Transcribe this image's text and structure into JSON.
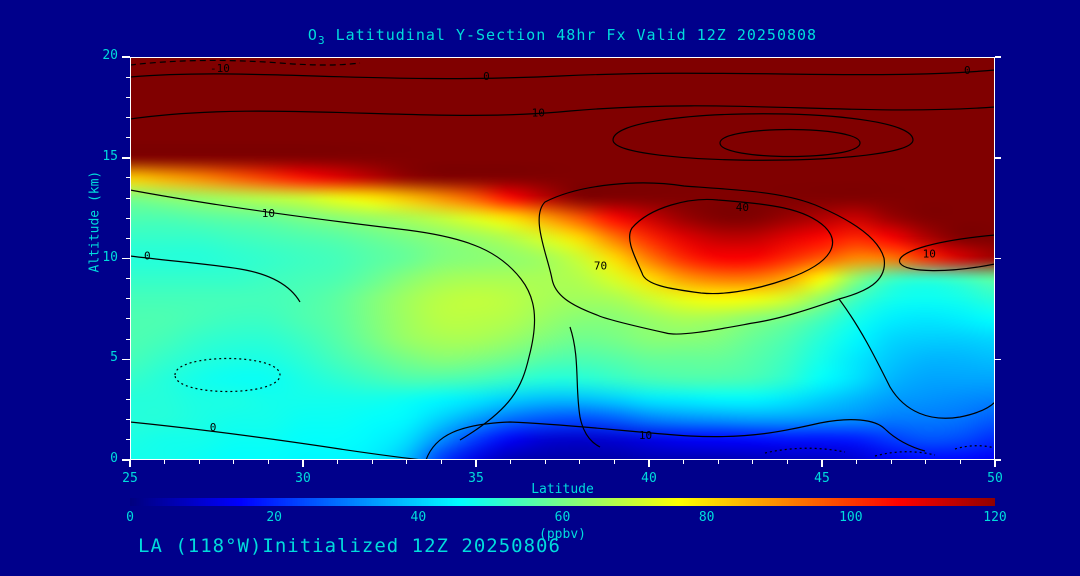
{
  "title": {
    "prefix": "O",
    "sub": "3",
    "rest": " Latitudinal Y-Section 48hr  Fx Valid 12Z 20250808"
  },
  "footer": "LA (118°W)Initialized 12Z 20250806",
  "axes": {
    "x": {
      "label": "Latitude",
      "min": 25,
      "max": 50,
      "major_ticks": [
        25,
        30,
        35,
        40,
        45,
        50
      ],
      "minor_step": 1
    },
    "y": {
      "label": "Altitude (km)",
      "min": 0,
      "max": 20,
      "major_ticks": [
        0,
        5,
        10,
        15,
        20
      ],
      "minor_step": 1
    }
  },
  "colorbar": {
    "min": 0,
    "max": 120,
    "ticks": [
      0,
      20,
      40,
      60,
      80,
      100,
      120
    ],
    "units": "(ppbv)"
  },
  "colors": {
    "background": "#00008B",
    "text_cyan": "#00DCDC",
    "axis_white": "#FFFFFF",
    "contour_black": "#000000"
  },
  "chart_data": {
    "type": "heatmap",
    "title": "O3 Latitudinal Y-Section 48hr  Fx Valid 12Z 20250808",
    "xlabel": "Latitude",
    "ylabel": "Altitude (km)",
    "units": "ppbv",
    "colormap": "jet",
    "value_range": [
      0,
      120
    ],
    "color_clamp": 122,
    "x_lats": [
      25,
      26,
      27,
      28,
      29,
      30,
      31,
      32,
      33,
      34,
      35,
      36,
      37,
      38,
      39,
      40,
      41,
      42,
      43,
      44,
      45,
      46,
      47,
      48,
      49,
      50
    ],
    "y_alts": [
      0,
      1,
      2,
      3,
      4,
      5,
      6,
      7,
      8,
      9,
      10,
      11,
      12,
      13,
      14,
      15,
      16,
      17,
      18,
      19,
      20
    ],
    "values_ppbv": [
      [
        48,
        48,
        47,
        46,
        46,
        45,
        45,
        44,
        38,
        22,
        12,
        6,
        5,
        5,
        5,
        6,
        6,
        6,
        7,
        8,
        8,
        10,
        14,
        16,
        16,
        14
      ],
      [
        49,
        48,
        48,
        47,
        47,
        46,
        46,
        45,
        42,
        32,
        22,
        14,
        10,
        9,
        10,
        12,
        14,
        15,
        16,
        17,
        17,
        18,
        22,
        25,
        24,
        20
      ],
      [
        50,
        50,
        49,
        48,
        48,
        47,
        47,
        46,
        45,
        40,
        34,
        28,
        25,
        24,
        26,
        30,
        32,
        33,
        34,
        34,
        33,
        32,
        30,
        30,
        29,
        26
      ],
      [
        50,
        50,
        49,
        49,
        48,
        48,
        48,
        48,
        47,
        45,
        43,
        40,
        38,
        38,
        40,
        43,
        44,
        45,
        45,
        43,
        40,
        37,
        34,
        33,
        32,
        31
      ],
      [
        52,
        50,
        48,
        47,
        47,
        49,
        51,
        53,
        55,
        55,
        54,
        52,
        50,
        50,
        52,
        54,
        55,
        55,
        54,
        51,
        46,
        42,
        37,
        35,
        35,
        35
      ],
      [
        54,
        52,
        50,
        49,
        49,
        51,
        54,
        57,
        60,
        62,
        61,
        59,
        56,
        55,
        56,
        58,
        58,
        58,
        56,
        53,
        48,
        43,
        39,
        37,
        37,
        38
      ],
      [
        55,
        54,
        52,
        51,
        51,
        53,
        56,
        60,
        64,
        66,
        66,
        64,
        61,
        59,
        60,
        62,
        62,
        61,
        58,
        55,
        50,
        45,
        41,
        40,
        40,
        41
      ],
      [
        55,
        55,
        54,
        53,
        53,
        55,
        57,
        61,
        65,
        68,
        68,
        67,
        64,
        62,
        62,
        64,
        66,
        65,
        62,
        59,
        54,
        48,
        44,
        43,
        44,
        46
      ],
      [
        54,
        54,
        54,
        54,
        54,
        55,
        57,
        61,
        65,
        68,
        69,
        68,
        66,
        65,
        66,
        70,
        74,
        76,
        75,
        71,
        63,
        53,
        48,
        47,
        48,
        51
      ],
      [
        52,
        52,
        52,
        52,
        53,
        54,
        55,
        58,
        62,
        65,
        66,
        66,
        66,
        67,
        72,
        80,
        88,
        92,
        92,
        87,
        76,
        62,
        53,
        51,
        53,
        57
      ],
      [
        50,
        50,
        50,
        51,
        52,
        53,
        54,
        56,
        58,
        61,
        62,
        63,
        65,
        70,
        80,
        92,
        102,
        107,
        107,
        102,
        96,
        90,
        92,
        101,
        111,
        118
      ],
      [
        52,
        52,
        52,
        53,
        54,
        55,
        56,
        58,
        60,
        62,
        64,
        67,
        72,
        80,
        92,
        102,
        110,
        114,
        114,
        110,
        106,
        102,
        107,
        116,
        126,
        132
      ],
      [
        55,
        55,
        56,
        57,
        58,
        60,
        62,
        64,
        66,
        69,
        73,
        79,
        87,
        96,
        106,
        113,
        119,
        123,
        123,
        119,
        116,
        113,
        119,
        129,
        136,
        141
      ],
      [
        60,
        62,
        64,
        66,
        68,
        70,
        74,
        78,
        83,
        89,
        96,
        106,
        115,
        122,
        128,
        132,
        135,
        136,
        135,
        132,
        130,
        129,
        133,
        139,
        143,
        146
      ],
      [
        82,
        86,
        90,
        95,
        100,
        105,
        110,
        115,
        120,
        126,
        131,
        136,
        140,
        142,
        144,
        145,
        146,
        146,
        146,
        145,
        144,
        143,
        145,
        147,
        148,
        150
      ],
      [
        126,
        128,
        131,
        133,
        136,
        139,
        141,
        143,
        145,
        147,
        148,
        150,
        150,
        150,
        150,
        150,
        150,
        150,
        150,
        150,
        150,
        150,
        150,
        150,
        150,
        150
      ],
      [
        150,
        150,
        150,
        150,
        150,
        150,
        150,
        150,
        150,
        150,
        150,
        150,
        150,
        150,
        150,
        150,
        150,
        150,
        150,
        150,
        150,
        150,
        150,
        150,
        150,
        150
      ],
      [
        150,
        150,
        150,
        150,
        150,
        150,
        150,
        150,
        150,
        150,
        150,
        150,
        150,
        150,
        150,
        150,
        150,
        150,
        150,
        150,
        150,
        150,
        150,
        150,
        150,
        150
      ],
      [
        150,
        150,
        150,
        150,
        150,
        150,
        150,
        150,
        150,
        150,
        150,
        150,
        150,
        150,
        150,
        150,
        150,
        150,
        150,
        150,
        150,
        150,
        150,
        150,
        150,
        150
      ],
      [
        150,
        150,
        150,
        150,
        150,
        150,
        150,
        150,
        150,
        150,
        150,
        150,
        150,
        150,
        150,
        150,
        150,
        150,
        150,
        150,
        150,
        150,
        150,
        150,
        150,
        150
      ],
      [
        150,
        150,
        150,
        150,
        150,
        150,
        150,
        150,
        150,
        150,
        150,
        150,
        150,
        150,
        150,
        150,
        150,
        150,
        150,
        150,
        150,
        150,
        150,
        150,
        150,
        150
      ]
    ],
    "contour_labels": [
      {
        "text": "-10",
        "lat": 27.6,
        "alt": 19.4
      },
      {
        "text": "0",
        "lat": 35.3,
        "alt": 19.0
      },
      {
        "text": "0",
        "lat": 49.2,
        "alt": 19.3
      },
      {
        "text": "10",
        "lat": 36.8,
        "alt": 17.2
      },
      {
        "text": "10",
        "lat": 29.0,
        "alt": 12.2
      },
      {
        "text": "0",
        "lat": 25.5,
        "alt": 10.1
      },
      {
        "text": "40",
        "lat": 42.7,
        "alt": 12.5
      },
      {
        "text": "70",
        "lat": 38.6,
        "alt": 9.6
      },
      {
        "text": "10",
        "lat": 48.1,
        "alt": 10.2
      },
      {
        "text": "0",
        "lat": 27.4,
        "alt": 1.6
      },
      {
        "text": "10",
        "lat": 39.9,
        "alt": 1.2
      }
    ]
  }
}
